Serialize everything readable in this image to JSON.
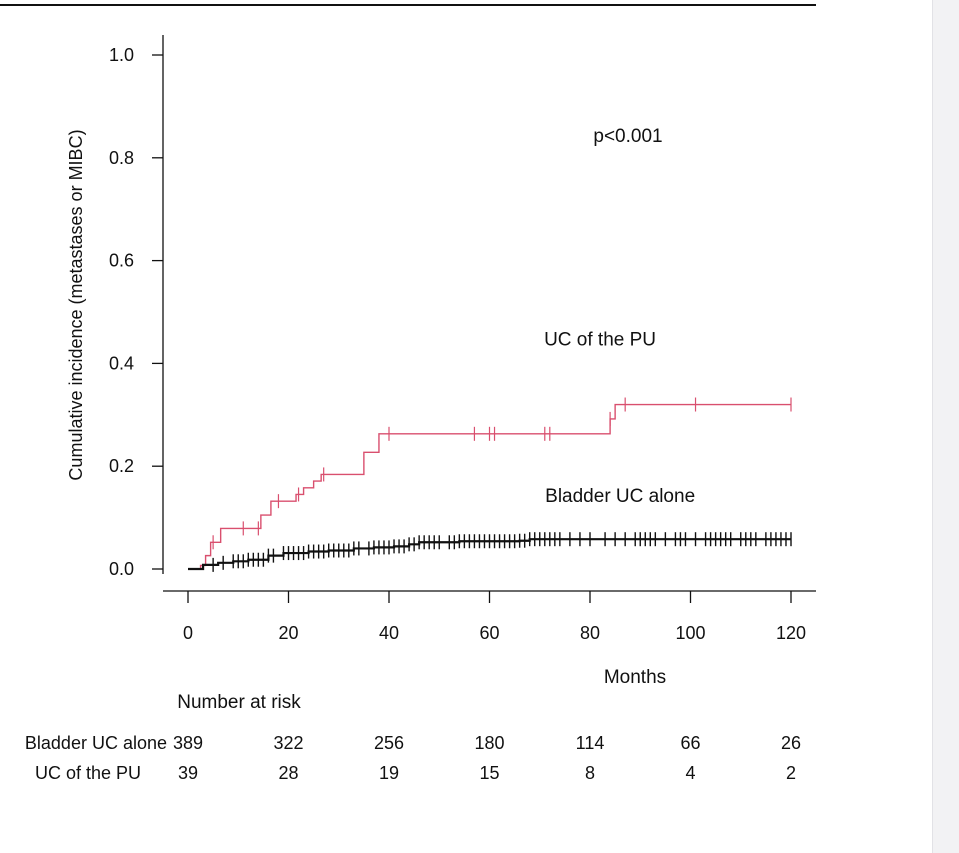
{
  "chart_data": {
    "type": "line",
    "title": "",
    "xlabel": "Months",
    "ylabel": "Cumulative incidence (metastases or MIBC)",
    "xlim": [
      0,
      120
    ],
    "ylim": [
      0,
      1.0
    ],
    "x_ticks": [
      "0",
      "20",
      "40",
      "60",
      "80",
      "100",
      "120"
    ],
    "y_ticks": [
      "0.0",
      "0.2",
      "0.4",
      "0.6",
      "0.8",
      "1.0"
    ],
    "grid": false,
    "legend": "none",
    "annotation": "p<0.001",
    "series": [
      {
        "name": "UC of the PU",
        "color": "#d94f6e",
        "steps": [
          [
            0,
            0
          ],
          [
            2.5,
            0.007
          ],
          [
            3.5,
            0.026
          ],
          [
            4.5,
            0.052
          ],
          [
            6.5,
            0.079
          ],
          [
            14.5,
            0.105
          ],
          [
            16.5,
            0.132
          ],
          [
            21.5,
            0.145
          ],
          [
            23,
            0.158
          ],
          [
            25,
            0.171
          ],
          [
            26.5,
            0.184
          ],
          [
            35,
            0.227
          ],
          [
            38,
            0.263
          ],
          [
            84,
            0.292
          ],
          [
            85,
            0.32
          ],
          [
            120,
            0.32
          ]
        ],
        "censor_x": [
          5,
          11,
          14,
          18,
          22,
          27,
          40,
          57,
          60,
          61,
          71,
          72,
          84,
          87,
          101,
          120
        ],
        "label": "UC of the PU",
        "label_x": 82,
        "label_y": 0.435
      },
      {
        "name": "Bladder UC alone",
        "color": "#111111",
        "steps": [
          [
            0,
            0
          ],
          [
            3,
            0.008
          ],
          [
            6,
            0.012
          ],
          [
            9,
            0.015
          ],
          [
            12,
            0.018
          ],
          [
            16,
            0.026
          ],
          [
            19,
            0.031
          ],
          [
            24,
            0.034
          ],
          [
            28,
            0.036
          ],
          [
            33,
            0.04
          ],
          [
            37,
            0.042
          ],
          [
            41,
            0.044
          ],
          [
            44,
            0.048
          ],
          [
            46,
            0.052
          ],
          [
            52,
            0.052
          ],
          [
            54,
            0.054
          ],
          [
            66,
            0.055
          ],
          [
            68,
            0.058
          ],
          [
            120,
            0.058
          ]
        ],
        "censor_x": [
          5,
          7,
          9,
          10,
          11,
          12,
          13,
          14,
          15,
          16,
          17,
          19,
          20,
          21,
          22,
          23,
          24,
          25,
          26,
          27,
          28,
          29,
          30,
          31,
          32,
          33,
          34,
          36,
          37,
          38,
          39,
          40,
          41,
          42,
          43,
          44,
          45,
          46,
          47,
          48,
          49,
          50,
          52,
          53,
          54,
          55,
          56,
          57,
          58,
          59,
          60,
          61,
          62,
          63,
          64,
          65,
          66,
          67,
          68,
          69,
          70,
          71,
          72,
          73,
          74,
          76,
          78,
          80,
          83,
          85,
          87,
          89,
          90,
          91,
          92,
          93,
          95,
          97,
          98,
          99,
          101,
          103,
          104,
          105,
          106,
          107,
          108,
          110,
          111,
          112,
          113,
          115,
          116,
          117,
          118,
          119,
          120
        ],
        "label": "Bladder UC alone",
        "label_x": 86,
        "label_y": 0.13
      }
    ],
    "risk_table": {
      "title": "Number at risk",
      "rows": [
        {
          "label": "Bladder UC alone",
          "values": [
            "389",
            "322",
            "256",
            "180",
            "114",
            "66",
            "26"
          ]
        },
        {
          "label": "UC of the PU",
          "values": [
            "39",
            "28",
            "19",
            "15",
            "8",
            "4",
            "2"
          ]
        }
      ]
    }
  }
}
